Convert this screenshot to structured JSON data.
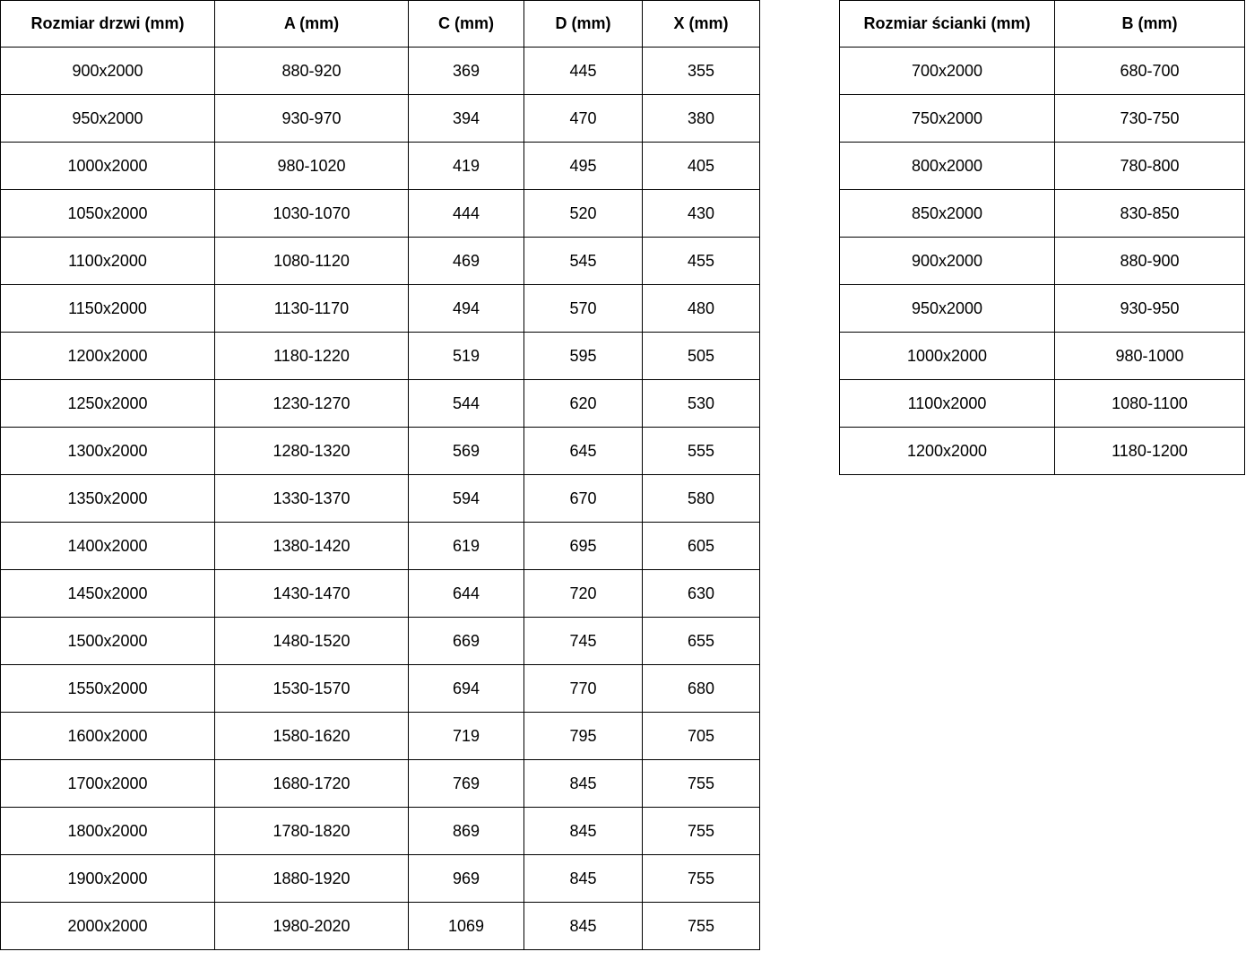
{
  "chart_data": [
    {
      "type": "table",
      "name": "door-sizes",
      "headers": [
        "Rozmiar drzwi (mm)",
        "A (mm)",
        "C (mm)",
        "D (mm)",
        "X (mm)"
      ],
      "rows": [
        [
          "900x2000",
          "880-920",
          "369",
          "445",
          "355"
        ],
        [
          "950x2000",
          "930-970",
          "394",
          "470",
          "380"
        ],
        [
          "1000x2000",
          "980-1020",
          "419",
          "495",
          "405"
        ],
        [
          "1050x2000",
          "1030-1070",
          "444",
          "520",
          "430"
        ],
        [
          "1100x2000",
          "1080-1120",
          "469",
          "545",
          "455"
        ],
        [
          "1150x2000",
          "1130-1170",
          "494",
          "570",
          "480"
        ],
        [
          "1200x2000",
          "1180-1220",
          "519",
          "595",
          "505"
        ],
        [
          "1250x2000",
          "1230-1270",
          "544",
          "620",
          "530"
        ],
        [
          "1300x2000",
          "1280-1320",
          "569",
          "645",
          "555"
        ],
        [
          "1350x2000",
          "1330-1370",
          "594",
          "670",
          "580"
        ],
        [
          "1400x2000",
          "1380-1420",
          "619",
          "695",
          "605"
        ],
        [
          "1450x2000",
          "1430-1470",
          "644",
          "720",
          "630"
        ],
        [
          "1500x2000",
          "1480-1520",
          "669",
          "745",
          "655"
        ],
        [
          "1550x2000",
          "1530-1570",
          "694",
          "770",
          "680"
        ],
        [
          "1600x2000",
          "1580-1620",
          "719",
          "795",
          "705"
        ],
        [
          "1700x2000",
          "1680-1720",
          "769",
          "845",
          "755"
        ],
        [
          "1800x2000",
          "1780-1820",
          "869",
          "845",
          "755"
        ],
        [
          "1900x2000",
          "1880-1920",
          "969",
          "845",
          "755"
        ],
        [
          "2000x2000",
          "1980-2020",
          "1069",
          "845",
          "755"
        ]
      ]
    },
    {
      "type": "table",
      "name": "wall-panel-sizes",
      "headers": [
        "Rozmiar ścianki (mm)",
        "B (mm)"
      ],
      "rows": [
        [
          "700x2000",
          "680-700"
        ],
        [
          "750x2000",
          "730-750"
        ],
        [
          "800x2000",
          "780-800"
        ],
        [
          "850x2000",
          "830-850"
        ],
        [
          "900x2000",
          "880-900"
        ],
        [
          "950x2000",
          "930-950"
        ],
        [
          "1000x2000",
          "980-1000"
        ],
        [
          "1100x2000",
          "1080-1100"
        ],
        [
          "1200x2000",
          "1180-1200"
        ]
      ]
    }
  ],
  "colors": {
    "background": "#ffffff",
    "border": "#000000",
    "text": "#000000"
  }
}
